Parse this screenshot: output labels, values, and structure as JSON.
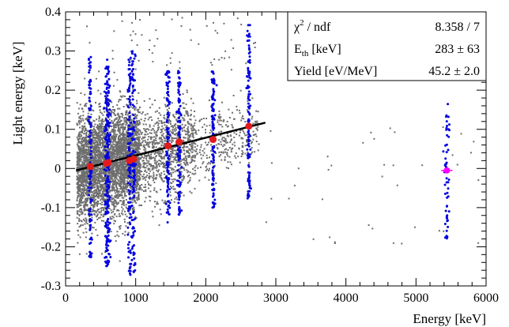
{
  "chart_data": {
    "type": "scatter",
    "xlabel": "Energy [keV]",
    "ylabel": "Light energy [keV]",
    "xlim": [
      0,
      6000
    ],
    "ylim": [
      -0.3,
      0.4
    ],
    "x_ticks": [
      0,
      1000,
      2000,
      3000,
      4000,
      5000,
      6000
    ],
    "y_ticks": [
      -0.3,
      -0.2,
      -0.1,
      0,
      0.1,
      0.2,
      0.3,
      0.4
    ],
    "y_tick_labels": [
      "-0.3",
      "-0.2",
      "-0.1",
      "0",
      "0.1",
      "0.2",
      "0.3",
      "0.4"
    ],
    "grid": false,
    "colors": {
      "background_events": "#6e6e6e",
      "gamma_lines": "#0000e0",
      "fit_points": "#e41a1c",
      "fit_line": "#000000",
      "alpha_point": "#ff00ff"
    },
    "gamma_lines_keV": [
      352,
      583,
      609,
      911,
      969,
      1461,
      1620,
      2104,
      2615
    ],
    "gamma_line_light_spread": {
      "352": [
        -0.23,
        0.29
      ],
      "583": [
        -0.25,
        0.27
      ],
      "609": [
        -0.25,
        0.28
      ],
      "911": [
        -0.28,
        0.29
      ],
      "969": [
        -0.27,
        0.3
      ],
      "1461": [
        -0.14,
        0.25
      ],
      "1620": [
        -0.12,
        0.25
      ],
      "2104": [
        -0.1,
        0.25
      ],
      "2615": [
        -0.08,
        0.37
      ]
    },
    "alpha_line": {
      "energy_keV": 5440,
      "light_range": [
        -0.18,
        0.17
      ]
    },
    "fit_points": [
      {
        "x": 352,
        "y": 0.005
      },
      {
        "x": 583,
        "y": 0.013
      },
      {
        "x": 609,
        "y": 0.015
      },
      {
        "x": 911,
        "y": 0.02
      },
      {
        "x": 969,
        "y": 0.024
      },
      {
        "x": 1461,
        "y": 0.058
      },
      {
        "x": 1620,
        "y": 0.068
      },
      {
        "x": 2104,
        "y": 0.074
      },
      {
        "x": 2615,
        "y": 0.108
      }
    ],
    "alpha_point": {
      "x": 5440,
      "y": -0.005,
      "xerr": 80
    },
    "fit_line": {
      "x": [
        150,
        2850
      ],
      "y": [
        -0.005,
        0.117
      ]
    },
    "stats_box": {
      "rows": [
        {
          "label_main": "χ",
          "label_sup": "2",
          "label_rest": " / ndf",
          "value": "8.358 / 7"
        },
        {
          "label_main": "E",
          "label_sub": "th",
          "label_rest": " [keV]",
          "value": "283 ± 63"
        },
        {
          "label_main": "Yield [eV/MeV]",
          "value": "45.2 ± 2.0"
        }
      ]
    }
  }
}
